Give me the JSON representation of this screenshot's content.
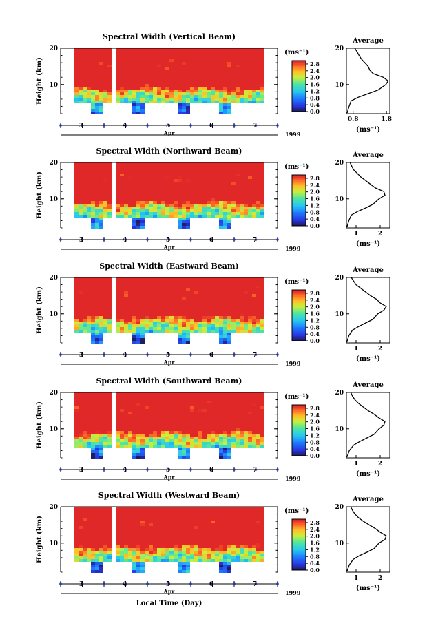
{
  "figure": {
    "x_title": "Local Time (Day)",
    "month_label": "Apr",
    "year_label": "1999",
    "y_title": "Height (km)",
    "colorbar_unit": "(ms⁻¹)",
    "average_title": "Average",
    "average_xlabel": "(ms⁻¹)"
  },
  "chart_data": [
    {
      "type": "heatmap",
      "title": "Spectral Width (Vertical Beam)",
      "ylabel": "Height (km)",
      "xlabel": "Apr",
      "ylim": [
        2,
        20
      ],
      "y_ticks": [
        {
          "v": 20,
          "label": "20"
        },
        {
          "v": 10,
          "label": "10"
        }
      ],
      "x_ticks": [
        "3",
        "4",
        "5",
        "6",
        "7"
      ],
      "colorbar": {
        "ticks": [
          "0.0",
          "0.4",
          "0.8",
          "1.2",
          "1.6",
          "2.0",
          "2.4",
          "2.8"
        ],
        "range": [
          0,
          3.0
        ]
      },
      "average": {
        "title": "Average",
        "xlabel": "(ms⁻¹)",
        "x_ticks": [
          {
            "v": 0.8,
            "label": "0.8"
          },
          {
            "v": 1.8,
            "label": "1.8"
          }
        ],
        "xlim": [
          0.6,
          1.9
        ],
        "ylim": [
          2,
          20
        ],
        "y_ticks": [
          {
            "v": 20,
            "label": "20"
          },
          {
            "v": 10,
            "label": "10"
          }
        ],
        "profile": [
          [
            0.62,
            2.2
          ],
          [
            0.68,
            4
          ],
          [
            0.74,
            5.5
          ],
          [
            0.95,
            6.5
          ],
          [
            1.25,
            7.5
          ],
          [
            1.55,
            8.5
          ],
          [
            1.78,
            10
          ],
          [
            1.85,
            11
          ],
          [
            1.7,
            12
          ],
          [
            1.4,
            13
          ],
          [
            1.3,
            14
          ],
          [
            1.25,
            15
          ],
          [
            1.15,
            16
          ],
          [
            1.05,
            17
          ],
          [
            0.98,
            18
          ],
          [
            0.92,
            19
          ],
          [
            0.85,
            20
          ]
        ]
      }
    },
    {
      "type": "heatmap",
      "title": "Spectral Width (Northward Beam)",
      "ylabel": "Height (km)",
      "xlabel": "Apr",
      "ylim": [
        2,
        20
      ],
      "y_ticks": [
        {
          "v": 20,
          "label": "20"
        },
        {
          "v": 10,
          "label": "10"
        }
      ],
      "x_ticks": [
        "3",
        "4",
        "5",
        "6",
        "7"
      ],
      "colorbar": {
        "ticks": [
          "0.0",
          "0.4",
          "0.8",
          "1.2",
          "1.6",
          "2.0",
          "2.4",
          "2.8"
        ],
        "range": [
          0,
          3.0
        ]
      },
      "average": {
        "title": "Average",
        "xlabel": "(ms⁻¹)",
        "x_ticks": [
          {
            "v": 1,
            "label": "1"
          },
          {
            "v": 2,
            "label": "2"
          }
        ],
        "xlim": [
          0.6,
          2.4
        ],
        "ylim": [
          2,
          20
        ],
        "y_ticks": [
          {
            "v": 20,
            "label": "20"
          },
          {
            "v": 10,
            "label": "10"
          }
        ],
        "profile": [
          [
            0.62,
            2.2
          ],
          [
            0.7,
            4
          ],
          [
            0.8,
            5.5
          ],
          [
            1.05,
            6.5
          ],
          [
            1.4,
            7.5
          ],
          [
            1.7,
            8.5
          ],
          [
            1.95,
            10
          ],
          [
            2.2,
            11
          ],
          [
            2.15,
            12
          ],
          [
            1.8,
            13
          ],
          [
            1.6,
            14
          ],
          [
            1.4,
            15
          ],
          [
            1.2,
            16
          ],
          [
            1.05,
            17
          ],
          [
            0.9,
            18
          ],
          [
            0.82,
            19
          ],
          [
            0.75,
            20
          ]
        ]
      }
    },
    {
      "type": "heatmap",
      "title": "Spectral Width (Eastward Beam)",
      "ylabel": "Height (km)",
      "xlabel": "Apr",
      "ylim": [
        2,
        20
      ],
      "y_ticks": [
        {
          "v": 20,
          "label": "20"
        },
        {
          "v": 10,
          "label": "10"
        }
      ],
      "x_ticks": [
        "3",
        "4",
        "5",
        "6",
        "7"
      ],
      "colorbar": {
        "ticks": [
          "0.0",
          "0.4",
          "0.8",
          "1.2",
          "1.6",
          "2.0",
          "2.4",
          "2.8"
        ],
        "range": [
          0,
          3.0
        ]
      },
      "average": {
        "title": "Average",
        "xlabel": "(ms⁻¹)",
        "x_ticks": [
          {
            "v": 1,
            "label": "1"
          },
          {
            "v": 2,
            "label": "2"
          }
        ],
        "xlim": [
          0.6,
          2.4
        ],
        "ylim": [
          2,
          20
        ],
        "y_ticks": [
          {
            "v": 20,
            "label": "20"
          },
          {
            "v": 10,
            "label": "10"
          }
        ],
        "profile": [
          [
            0.62,
            2.2
          ],
          [
            0.7,
            4
          ],
          [
            0.85,
            5.5
          ],
          [
            1.1,
            6.5
          ],
          [
            1.4,
            7.5
          ],
          [
            1.7,
            8.5
          ],
          [
            1.9,
            10
          ],
          [
            2.15,
            11
          ],
          [
            2.25,
            12
          ],
          [
            2.0,
            13
          ],
          [
            1.85,
            14
          ],
          [
            1.6,
            15
          ],
          [
            1.4,
            16
          ],
          [
            1.2,
            17
          ],
          [
            1.0,
            18
          ],
          [
            0.9,
            19
          ],
          [
            0.8,
            20
          ]
        ]
      }
    },
    {
      "type": "heatmap",
      "title": "Spectral Width (Southward Beam)",
      "ylabel": "Height (km)",
      "xlabel": "Apr",
      "ylim": [
        2,
        20
      ],
      "y_ticks": [
        {
          "v": 20,
          "label": "20"
        },
        {
          "v": 10,
          "label": "10"
        }
      ],
      "x_ticks": [
        "3",
        "4",
        "5",
        "6",
        "7"
      ],
      "colorbar": {
        "ticks": [
          "0.0",
          "0.4",
          "0.8",
          "1.2",
          "1.6",
          "2.0",
          "2.4",
          "2.8"
        ],
        "range": [
          0,
          3.0
        ]
      },
      "average": {
        "title": "Average",
        "xlabel": "(ms⁻¹)",
        "x_ticks": [
          {
            "v": 1,
            "label": "1"
          },
          {
            "v": 2,
            "label": "2"
          }
        ],
        "xlim": [
          0.6,
          2.4
        ],
        "ylim": [
          2,
          20
        ],
        "y_ticks": [
          {
            "v": 20,
            "label": "20"
          },
          {
            "v": 10,
            "label": "10"
          }
        ],
        "profile": [
          [
            0.62,
            2.2
          ],
          [
            0.72,
            4
          ],
          [
            0.9,
            5.5
          ],
          [
            1.15,
            6.5
          ],
          [
            1.45,
            7.5
          ],
          [
            1.75,
            8.5
          ],
          [
            1.95,
            10
          ],
          [
            2.15,
            11
          ],
          [
            2.2,
            12
          ],
          [
            1.95,
            13
          ],
          [
            1.75,
            14
          ],
          [
            1.5,
            15
          ],
          [
            1.3,
            16
          ],
          [
            1.1,
            17
          ],
          [
            0.95,
            18
          ],
          [
            0.85,
            19
          ],
          [
            0.78,
            20
          ]
        ]
      }
    },
    {
      "type": "heatmap",
      "title": "Spectral Width (Westward Beam)",
      "ylabel": "Height (km)",
      "xlabel": "Apr",
      "ylim": [
        2,
        20
      ],
      "y_ticks": [
        {
          "v": 20,
          "label": "20"
        },
        {
          "v": 10,
          "label": "10"
        }
      ],
      "x_ticks": [
        "3",
        "4",
        "5",
        "6",
        "7"
      ],
      "colorbar": {
        "ticks": [
          "0.0",
          "0.4",
          "0.8",
          "1.2",
          "1.6",
          "2.0",
          "2.4",
          "2.8"
        ],
        "range": [
          0,
          3.0
        ]
      },
      "average": {
        "title": "Average",
        "xlabel": "(ms⁻¹)",
        "x_ticks": [
          {
            "v": 1,
            "label": "1"
          },
          {
            "v": 2,
            "label": "2"
          }
        ],
        "xlim": [
          0.6,
          2.4
        ],
        "ylim": [
          2,
          20
        ],
        "y_ticks": [
          {
            "v": 20,
            "label": "20"
          },
          {
            "v": 10,
            "label": "10"
          }
        ],
        "profile": [
          [
            0.62,
            2.2
          ],
          [
            0.72,
            4
          ],
          [
            0.88,
            5.5
          ],
          [
            1.12,
            6.5
          ],
          [
            1.45,
            7.5
          ],
          [
            1.75,
            8.5
          ],
          [
            1.95,
            10
          ],
          [
            2.2,
            11
          ],
          [
            2.25,
            12
          ],
          [
            2.0,
            13
          ],
          [
            1.8,
            14
          ],
          [
            1.55,
            15
          ],
          [
            1.3,
            16
          ],
          [
            1.1,
            17
          ],
          [
            0.95,
            18
          ],
          [
            0.85,
            19
          ],
          [
            0.78,
            20
          ]
        ]
      }
    }
  ]
}
